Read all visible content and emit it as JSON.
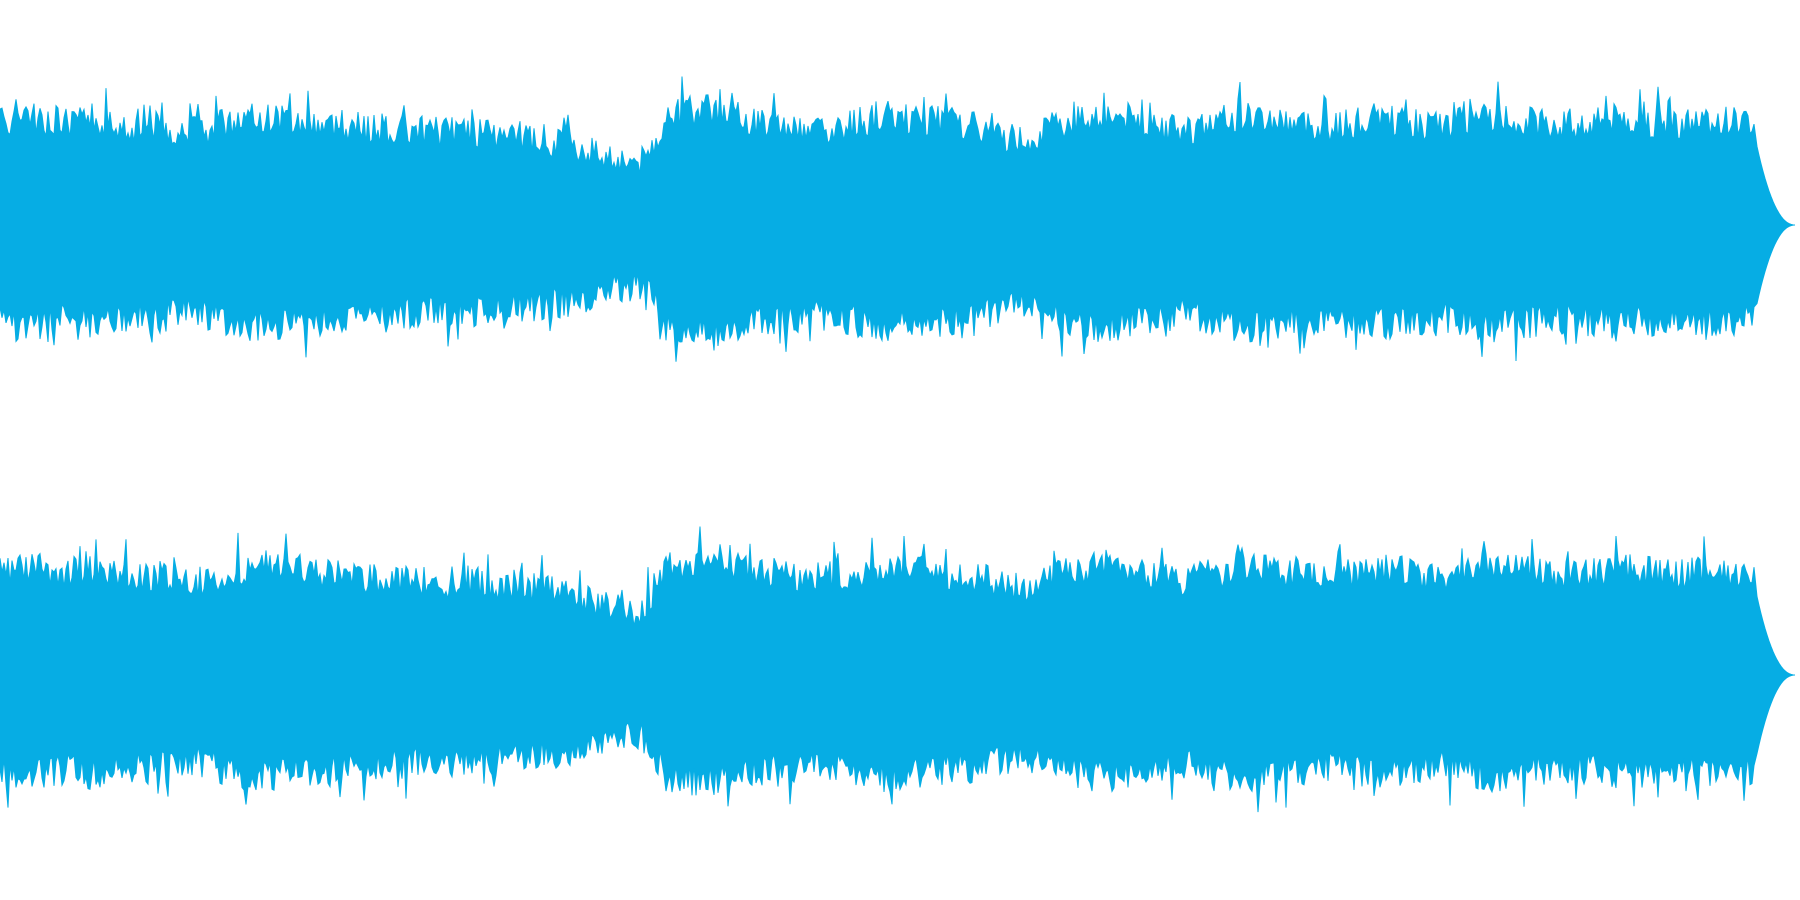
{
  "waveform": {
    "color": "#06ADE4",
    "background": "#FFFFFF",
    "channel_count": 2,
    "end_fraction": 0.975,
    "envelope": [
      0.62,
      0.66,
      0.63,
      0.6,
      0.64,
      0.62,
      0.58,
      0.6,
      0.56,
      0.54,
      0.6,
      0.64,
      0.66,
      0.64,
      0.62,
      0.6,
      0.58,
      0.57,
      0.56,
      0.55,
      0.54,
      0.55,
      0.53,
      0.52,
      0.5,
      0.48,
      0.45,
      0.4,
      0.36,
      0.34,
      0.66,
      0.68,
      0.7,
      0.66,
      0.62,
      0.6,
      0.58,
      0.57,
      0.6,
      0.63,
      0.66,
      0.64,
      0.62,
      0.6,
      0.58,
      0.52,
      0.5,
      0.55,
      0.62,
      0.65,
      0.67,
      0.64,
      0.6,
      0.56,
      0.58,
      0.62,
      0.66,
      0.64,
      0.62,
      0.6,
      0.58,
      0.61,
      0.64,
      0.62,
      0.6,
      0.58,
      0.62,
      0.66,
      0.64,
      0.62,
      0.6,
      0.58,
      0.62,
      0.64,
      0.62,
      0.6,
      0.61,
      0.63,
      0.62,
      0.61
    ]
  }
}
